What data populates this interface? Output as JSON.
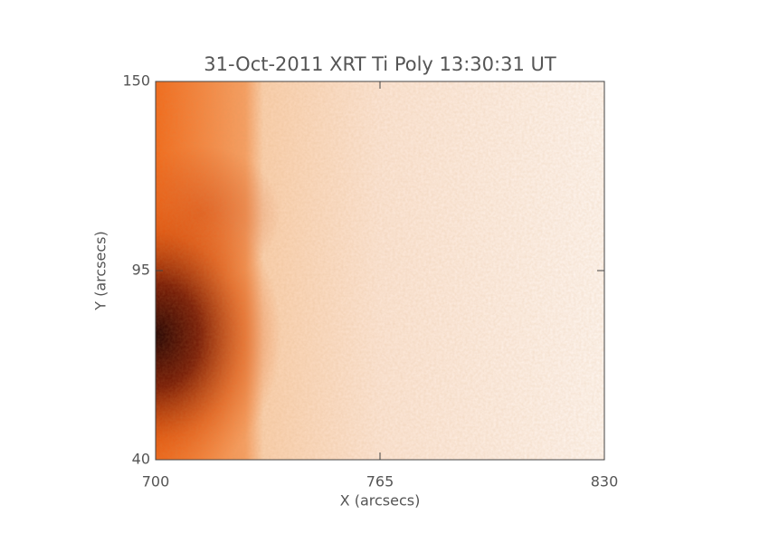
{
  "chart_data": {
    "type": "image",
    "title": "31-Oct-2011 XRT Ti Poly 13:30:31 UT",
    "x_label": "X (arcsecs)",
    "y_label": "Y (arcsecs)",
    "xlim": [
      700,
      830
    ],
    "xticks": [
      700,
      765,
      830
    ],
    "ylim": [
      40,
      150
    ],
    "yticks": [
      40,
      95,
      150
    ]
  }
}
